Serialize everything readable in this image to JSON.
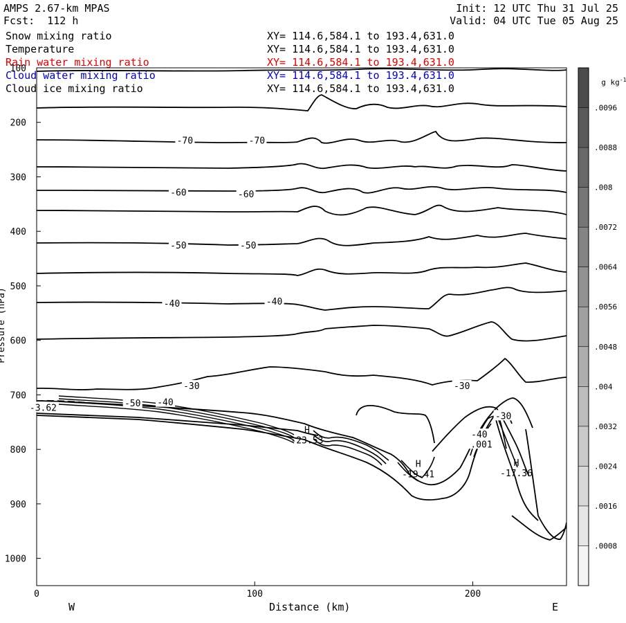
{
  "header": {
    "model": "AMPS 2.67-km MPAS",
    "forecast": "Fcst:  112 h",
    "init": "Init: 12 UTC Thu 31 Jul 25",
    "valid": "Valid: 04 UTC Tue 05 Aug 25"
  },
  "fields": [
    {
      "name": "Snow mixing ratio",
      "xy": "XY= 114.6,584.1 to 193.4,631.0",
      "color": "#000000"
    },
    {
      "name": "Temperature",
      "xy": "XY= 114.6,584.1 to 193.4,631.0",
      "color": "#000000"
    },
    {
      "name": "Rain water mixing ratio",
      "xy": "XY= 114.6,584.1 to 193.4,631.0",
      "color": "#e00000"
    },
    {
      "name": "Cloud water mixing ratio",
      "xy": "XY= 114.6,584.1 to 193.4,631.0",
      "color": "#0000c0"
    },
    {
      "name": "Cloud ice mixing ratio",
      "xy": "XY= 114.6,584.1 to 193.4,631.0",
      "color": "#000000"
    }
  ],
  "axes": {
    "ylabel": "Pressure (hPa)",
    "xlabel": "Distance (km)",
    "west": "W",
    "east": "E"
  },
  "colorbar": {
    "unit_label": "g kg",
    "unit_exp": "-1",
    "ticks": [
      ".0096",
      ".0088",
      ".008",
      ".0072",
      ".0064",
      ".0056",
      ".0048",
      ".004",
      ".0032",
      ".0024",
      ".0016",
      ".0008"
    ],
    "colors": [
      "#f4f4f4",
      "#e6e6e6",
      "#d8d8d8",
      "#cacaca",
      "#bcbcbc",
      "#aeaeae",
      "#a0a0a0",
      "#929292",
      "#848484",
      "#767676",
      "#686868",
      "#5a5a5a",
      "#4c4c4c"
    ]
  },
  "chart_data": {
    "type": "line",
    "x_ticks": [
      0,
      100,
      200
    ],
    "y_ticks": [
      100,
      200,
      300,
      400,
      500,
      600,
      700,
      800,
      900,
      1000
    ],
    "xlim": [
      0,
      243
    ],
    "ylim": [
      1050,
      100
    ],
    "contour_labels": [
      {
        "text": "-70",
        "x": 68,
        "y": 233
      },
      {
        "text": "-70",
        "x": 101,
        "y": 233
      },
      {
        "text": "-60",
        "x": 65,
        "y": 328
      },
      {
        "text": "-60",
        "x": 96,
        "y": 331
      },
      {
        "text": "-50",
        "x": 65,
        "y": 425
      },
      {
        "text": "-50",
        "x": 97,
        "y": 425
      },
      {
        "text": "-40",
        "x": 62,
        "y": 532
      },
      {
        "text": "-40",
        "x": 109,
        "y": 528
      },
      {
        "text": "-30",
        "x": 71,
        "y": 683
      },
      {
        "text": "-30",
        "x": 195,
        "y": 683
      },
      {
        "text": "-50",
        "x": 44,
        "y": 715
      },
      {
        "text": "-40",
        "x": 59,
        "y": 713
      },
      {
        "text": "-40",
        "x": 203,
        "y": 772
      },
      {
        "text": "-30",
        "x": 214,
        "y": 738
      },
      {
        "text": ".001",
        "x": 204,
        "y": 790
      },
      {
        "text": "-3.62",
        "x": 3,
        "y": 723
      }
    ],
    "extrema": [
      {
        "label": "H",
        "value": "-23.53",
        "x": 124,
        "y": 770
      },
      {
        "label": "H",
        "value": "-19.41",
        "x": 175,
        "y": 832
      },
      {
        "label": "H",
        "value": "-17.36",
        "x": 220,
        "y": 830
      }
    ]
  }
}
